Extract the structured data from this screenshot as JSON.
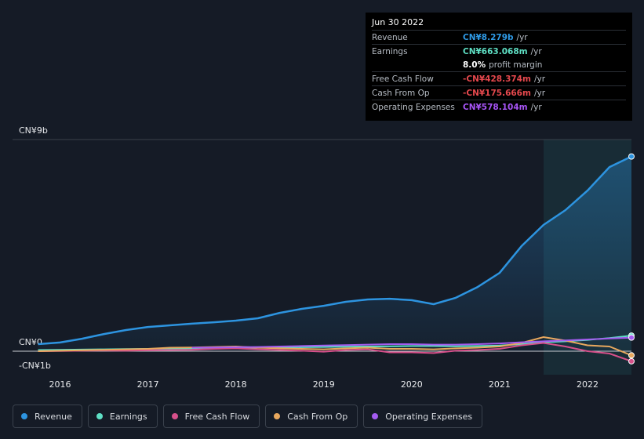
{
  "chart_data": {
    "type": "line",
    "x": [
      2015.75,
      2016.0,
      2016.25,
      2016.5,
      2016.75,
      2017.0,
      2017.25,
      2017.5,
      2017.75,
      2018.0,
      2018.25,
      2018.5,
      2018.75,
      2019.0,
      2019.25,
      2019.5,
      2019.75,
      2020.0,
      2020.25,
      2020.5,
      2020.75,
      2021.0,
      2021.25,
      2021.5,
      2021.75,
      2022.0,
      2022.25,
      2022.5
    ],
    "xlim": [
      2015.46,
      2022.5
    ],
    "xticks": [
      2016,
      2017,
      2018,
      2019,
      2020,
      2021,
      2022
    ],
    "ylim": [
      -1,
      9
    ],
    "yticks": [
      {
        "value": -1,
        "label": "-CN¥1b"
      },
      {
        "value": 0,
        "label": "CN¥0"
      },
      {
        "value": 9,
        "label": "CN¥9b"
      }
    ],
    "series": [
      {
        "name": "Revenue",
        "color": "#2d94e0",
        "values": [
          0.3,
          0.37,
          0.53,
          0.73,
          0.9,
          1.03,
          1.1,
          1.17,
          1.23,
          1.3,
          1.4,
          1.63,
          1.8,
          1.93,
          2.1,
          2.2,
          2.23,
          2.17,
          2.0,
          2.27,
          2.73,
          3.33,
          4.47,
          5.37,
          6.0,
          6.83,
          7.83,
          8.279
        ]
      },
      {
        "name": "Earnings",
        "color": "#5fe0c5",
        "values": [
          0.05,
          0.06,
          0.07,
          0.08,
          0.09,
          0.1,
          0.11,
          0.12,
          0.13,
          0.14,
          0.15,
          0.16,
          0.17,
          0.18,
          0.19,
          0.2,
          0.21,
          0.22,
          0.22,
          0.21,
          0.22,
          0.24,
          0.3,
          0.38,
          0.42,
          0.48,
          0.56,
          0.663
        ]
      },
      {
        "name": "Free Cash Flow",
        "color": "#d6508a",
        "values": [
          0,
          0.01,
          0.02,
          0.03,
          0.02,
          0.04,
          0.05,
          0.06,
          0.1,
          0.12,
          0.08,
          0.05,
          0.02,
          -0.02,
          0.05,
          0.08,
          -0.05,
          -0.05,
          -0.08,
          0.02,
          0.05,
          0.1,
          0.25,
          0.35,
          0.2,
          0,
          -0.1,
          -0.428
        ]
      },
      {
        "name": "Cash From Op",
        "color": "#e8a85e",
        "values": [
          0,
          0.02,
          0.04,
          0.06,
          0.08,
          0.1,
          0.15,
          0.16,
          0.18,
          0.2,
          0.15,
          0.12,
          0.1,
          0.08,
          0.12,
          0.15,
          0.1,
          0.1,
          0.08,
          0.12,
          0.15,
          0.2,
          0.35,
          0.6,
          0.45,
          0.25,
          0.2,
          -0.176
        ]
      },
      {
        "name": "Operating Expenses",
        "color": "#a45cf0",
        "values": [
          null,
          null,
          null,
          null,
          null,
          null,
          null,
          0.15,
          0.16,
          0.17,
          0.18,
          0.2,
          0.22,
          0.24,
          0.26,
          0.28,
          0.3,
          0.3,
          0.28,
          0.28,
          0.3,
          0.33,
          0.38,
          0.42,
          0.46,
          0.5,
          0.54,
          0.578
        ]
      }
    ]
  },
  "tooltip": {
    "date": "Jun 30 2022",
    "rows": [
      {
        "label": "Revenue",
        "value": "CN¥8.279b",
        "unit": "/yr",
        "color": "#2f9be8"
      },
      {
        "label": "Earnings",
        "value": "CN¥663.068m",
        "unit": "/yr",
        "color": "#5fe0c5"
      },
      {
        "value": "8.0%",
        "unit": "profit margin",
        "color": "#ffffff"
      },
      {
        "label": "Free Cash Flow",
        "value": "-CN¥428.374m",
        "unit": "/yr",
        "color": "#e5484d"
      },
      {
        "label": "Cash From Op",
        "value": "-CN¥175.666m",
        "unit": "/yr",
        "color": "#e5484d"
      },
      {
        "label": "Operating Expenses",
        "value": "CN¥578.104m",
        "unit": "/yr",
        "color": "#a855f7"
      }
    ]
  }
}
